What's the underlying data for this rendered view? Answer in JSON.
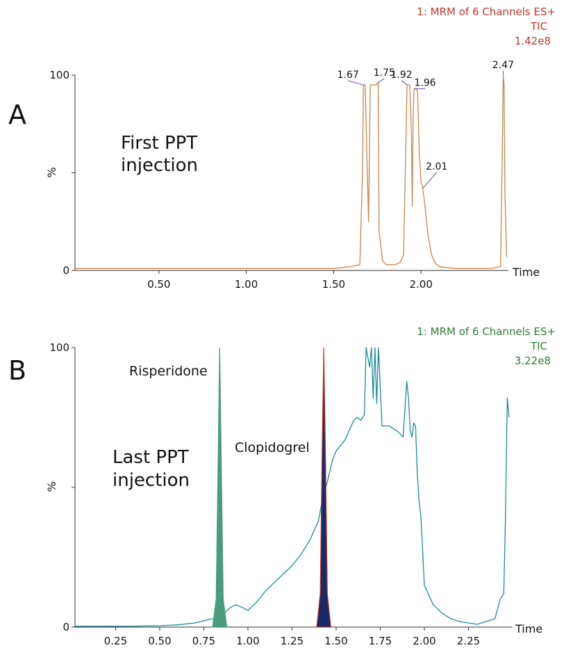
{
  "chart_data": [
    {
      "type": "line",
      "panel": "A",
      "header": [
        "1: MRM of 6 Channels ES+",
        "TIC",
        "1.42e8"
      ],
      "header_color": "#c0392b",
      "annotation": [
        "First PPT",
        "injection"
      ],
      "ylabel": "%",
      "xlabel": "Time",
      "xlim": [
        0.02,
        2.5
      ],
      "ylim": [
        0,
        100
      ],
      "xticks": [
        0.5,
        1.0,
        1.5,
        2.0
      ],
      "xtick_labels": [
        "0.50",
        "1.00",
        "1.50",
        "2.00"
      ],
      "yticks": [
        0,
        50,
        100
      ],
      "ytick_labels": [
        "0",
        "",
        "100"
      ],
      "series": [
        {
          "color": "#c8844e",
          "x": [
            0.02,
            0.5,
            1.0,
            1.5,
            1.55,
            1.6,
            1.65,
            1.665,
            1.67,
            1.675,
            1.68,
            1.69,
            1.7,
            1.71,
            1.72,
            1.735,
            1.745,
            1.75,
            1.755,
            1.76,
            1.78,
            1.8,
            1.85,
            1.88,
            1.9,
            1.91,
            1.92,
            1.925,
            1.935,
            1.945,
            1.95,
            1.955,
            1.96,
            1.97,
            1.98,
            1.99,
            2.0,
            2.005,
            2.01,
            2.02,
            2.04,
            2.06,
            2.08,
            2.1,
            2.15,
            2.2,
            2.3,
            2.4,
            2.455,
            2.465,
            2.47,
            2.475,
            2.48,
            2.49
          ],
          "y": [
            1,
            1,
            1,
            1,
            1.5,
            2,
            3,
            50,
            95,
            95,
            95,
            60,
            25,
            95,
            95,
            95,
            95,
            96,
            96,
            20,
            5,
            3,
            3,
            4,
            8,
            50,
            95,
            95,
            95,
            70,
            33,
            80,
            93,
            93,
            92,
            60,
            45,
            44,
            42,
            35,
            18,
            8,
            4,
            2,
            1.5,
            1,
            1,
            1,
            2,
            60,
            100,
            95,
            40,
            7
          ]
        }
      ],
      "peak_labels": [
        {
          "x": 1.67,
          "text": "1.67"
        },
        {
          "x": 1.75,
          "text": "1.75"
        },
        {
          "x": 1.92,
          "text": "1.92"
        },
        {
          "x": 1.96,
          "text": "1.96"
        },
        {
          "x": 2.01,
          "text": "2.01"
        },
        {
          "x": 2.47,
          "text": "2.47"
        }
      ]
    },
    {
      "type": "line",
      "panel": "B",
      "header": [
        "1: MRM of 6 Channels ES+",
        "TIC",
        "3.22e8"
      ],
      "header_color": "#2e7d32",
      "annotation": [
        "Last PPT",
        "injection"
      ],
      "compound_labels": [
        "Risperidone",
        "Clopidogrel"
      ],
      "ylabel": "%",
      "xlabel": "Time",
      "xlim": [
        0.02,
        2.5
      ],
      "ylim": [
        0,
        100
      ],
      "xticks": [
        0.25,
        0.5,
        0.75,
        1.0,
        1.25,
        1.5,
        1.75,
        2.0,
        2.25
      ],
      "xtick_labels": [
        "0.25",
        "0.50",
        "0.75",
        "1.00",
        "1.25",
        "1.50",
        "1.75",
        "2.00",
        "2.25"
      ],
      "yticks": [
        0,
        50,
        100
      ],
      "ytick_labels": [
        "0",
        "",
        "100"
      ],
      "series": [
        {
          "color": "#1f8a9a",
          "x": [
            0.02,
            0.3,
            0.5,
            0.6,
            0.7,
            0.8,
            0.85,
            0.9,
            0.93,
            0.97,
            1.0,
            1.05,
            1.1,
            1.15,
            1.2,
            1.25,
            1.3,
            1.35,
            1.4,
            1.42,
            1.45,
            1.48,
            1.5,
            1.55,
            1.6,
            1.62,
            1.64,
            1.66,
            1.67,
            1.69,
            1.7,
            1.71,
            1.72,
            1.73,
            1.74,
            1.76,
            1.8,
            1.85,
            1.88,
            1.9,
            1.91,
            1.92,
            1.93,
            1.94,
            1.95,
            1.96,
            1.97,
            1.98,
            2.0,
            2.05,
            2.1,
            2.15,
            2.2,
            2.3,
            2.4,
            2.43,
            2.45,
            2.46,
            2.47,
            2.48
          ],
          "y": [
            0.3,
            0.3,
            0.5,
            0.8,
            1.5,
            3,
            4,
            7,
            8,
            7,
            6,
            9,
            13,
            16,
            19,
            22,
            26,
            31,
            38,
            45,
            52,
            60,
            63,
            67,
            74,
            75,
            74,
            76,
            100,
            93,
            100,
            82,
            100,
            80,
            100,
            72,
            72,
            70,
            68,
            88,
            82,
            70,
            68,
            73,
            72,
            55,
            45,
            40,
            15,
            8,
            5,
            3,
            2,
            1,
            3,
            10,
            12,
            40,
            82,
            75
          ]
        },
        {
          "color": "#4a9c7c",
          "fill": "#4a9c7c",
          "x": [
            0.8,
            0.82,
            0.83,
            0.84,
            0.85,
            0.86,
            0.88
          ],
          "y": [
            0,
            10,
            55,
            100,
            55,
            10,
            0
          ]
        },
        {
          "color": "#c0392b",
          "fill": "#1a2a66",
          "x": [
            1.39,
            1.41,
            1.42,
            1.43,
            1.44,
            1.45,
            1.47
          ],
          "y": [
            0,
            12,
            60,
            100,
            60,
            12,
            0
          ]
        }
      ]
    }
  ]
}
